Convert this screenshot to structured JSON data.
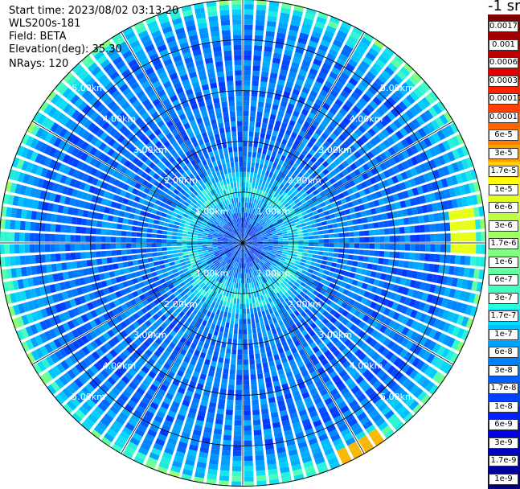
{
  "header": {
    "start_time": "Start time: 2023/08/02 03:13:20",
    "instrument": "WLS200s-181",
    "field": "Field: BETA",
    "elevation": "Elevation(deg): 35.30",
    "nrays": "NRays: 120"
  },
  "colorbar": {
    "unit_label": "-1 sr",
    "ticks": [
      "0.0017",
      "0.001",
      "0.0006",
      "0.0003",
      "0.00017",
      "0.0001",
      "6e-5",
      "3e-5",
      "1.7e-5",
      "1e-5",
      "6e-6",
      "3e-6",
      "1.7e-6",
      "1e-6",
      "6e-7",
      "3e-7",
      "1.7e-7",
      "1e-7",
      "6e-8",
      "3e-8",
      "1.7e-8",
      "1e-8",
      "6e-9",
      "3e-9",
      "1.7e-9",
      "1e-9"
    ],
    "colors": [
      "#800000",
      "#a00000",
      "#c00000",
      "#e00000",
      "#ff2000",
      "#ff4000",
      "#ff6000",
      "#ff8000",
      "#ffa000",
      "#ffd000",
      "#ffff00",
      "#e0ff20",
      "#c0ff40",
      "#a0ff60",
      "#80ff80",
      "#60ffa0",
      "#40ffc0",
      "#20ffe0",
      "#00e0ff",
      "#00c0ff",
      "#00a0ff",
      "#0080ff",
      "#0060ff",
      "#0040ff",
      "#0020ff",
      "#0000e0",
      "#0000c0",
      "#0000a0",
      "#000080"
    ]
  },
  "chart_data": {
    "type": "heatmap",
    "projection": "polar PPI",
    "field": "BETA",
    "nrays": 120,
    "range_rings_km": [
      1,
      2,
      3,
      4
    ],
    "range_labels": [
      "1.00km",
      "2.00km",
      "3.00km",
      "4.00km",
      "5.00km"
    ],
    "max_range_km": 4.8,
    "radial_lines_deg": [
      0,
      30,
      60,
      90,
      120,
      150,
      180,
      210,
      240,
      270,
      300,
      330
    ],
    "background_level_range": [
      "3e-9",
      "1.7e-7"
    ],
    "hotspots": [
      {
        "azimuth_deg": 86,
        "range_km": 4.35,
        "value": "1.7e-6"
      },
      {
        "azimuth_deg": 151,
        "range_km": 4.75,
        "value": "6e-5"
      }
    ]
  }
}
